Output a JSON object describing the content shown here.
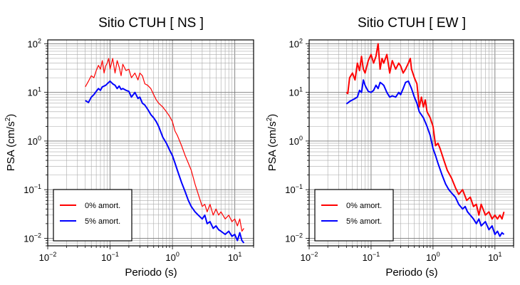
{
  "chart_data": [
    {
      "type": "line",
      "title": "Sitio CTUH [ NS ]",
      "xlabel": "Periodo (s)",
      "ylabel": "PSA (cm/s²)",
      "ylabel_parts": {
        "main": "PSA (cm/s",
        "sup": "2",
        "end": ")"
      },
      "x_scale": "log",
      "y_scale": "log",
      "xlim": [
        0.01,
        20
      ],
      "ylim": [
        0.007,
        120
      ],
      "grid": true,
      "legend_position": "bottom-left",
      "x_ticks": [
        {
          "base": "10",
          "exp": "−2",
          "value": 0.01
        },
        {
          "base": "10",
          "exp": "−1",
          "value": 0.1
        },
        {
          "base": "10",
          "exp": "0",
          "value": 1
        },
        {
          "base": "10",
          "exp": "1",
          "value": 10
        }
      ],
      "y_ticks": [
        {
          "base": "10",
          "exp": "−2",
          "value": 0.01
        },
        {
          "base": "10",
          "exp": "−1",
          "value": 0.1
        },
        {
          "base": "10",
          "exp": "0",
          "value": 1
        },
        {
          "base": "10",
          "exp": "1",
          "value": 10
        },
        {
          "base": "10",
          "exp": "2",
          "value": 100
        }
      ],
      "series": [
        {
          "name": "0% amort.",
          "color": "#ff0000",
          "width": 1.2,
          "x": [
            0.04,
            0.045,
            0.05,
            0.055,
            0.06,
            0.065,
            0.07,
            0.075,
            0.08,
            0.085,
            0.09,
            0.095,
            0.1,
            0.11,
            0.12,
            0.13,
            0.14,
            0.15,
            0.16,
            0.18,
            0.2,
            0.22,
            0.25,
            0.28,
            0.3,
            0.33,
            0.36,
            0.4,
            0.45,
            0.5,
            0.55,
            0.6,
            0.7,
            0.8,
            0.9,
            1.0,
            1.1,
            1.2,
            1.4,
            1.6,
            1.8,
            2.0,
            2.3,
            2.6,
            3.0,
            3.3,
            3.6,
            4.0,
            4.5,
            5.0,
            5.5,
            6.0,
            7.0,
            8.0,
            9.0,
            10,
            11,
            12,
            13,
            14
          ],
          "values": [
            13,
            17,
            22,
            20,
            28,
            36,
            30,
            45,
            25,
            35,
            40,
            50,
            30,
            50,
            25,
            45,
            33,
            22,
            38,
            28,
            30,
            20,
            25,
            18,
            25,
            22,
            15,
            14,
            12,
            9,
            7,
            6,
            5,
            4,
            3.2,
            2.5,
            1.6,
            1.3,
            0.8,
            0.5,
            0.35,
            0.25,
            0.13,
            0.08,
            0.045,
            0.05,
            0.035,
            0.05,
            0.03,
            0.04,
            0.03,
            0.035,
            0.025,
            0.03,
            0.022,
            0.025,
            0.018,
            0.025,
            0.014,
            0.016
          ]
        },
        {
          "name": "5% amort.",
          "color": "#0000ff",
          "width": 2,
          "x": [
            0.04,
            0.045,
            0.05,
            0.055,
            0.06,
            0.065,
            0.07,
            0.075,
            0.08,
            0.085,
            0.09,
            0.1,
            0.11,
            0.12,
            0.13,
            0.14,
            0.15,
            0.16,
            0.18,
            0.2,
            0.22,
            0.25,
            0.28,
            0.3,
            0.33,
            0.36,
            0.4,
            0.45,
            0.5,
            0.55,
            0.6,
            0.7,
            0.8,
            0.9,
            1.0,
            1.1,
            1.2,
            1.4,
            1.6,
            1.8,
            2.0,
            2.3,
            2.6,
            3.0,
            3.3,
            3.6,
            4.0,
            4.5,
            5.0,
            5.5,
            6.0,
            7.0,
            8.0,
            9.0,
            10,
            11,
            12,
            13,
            14
          ],
          "values": [
            6.8,
            6.2,
            8,
            9,
            10.5,
            12,
            11,
            13,
            13.5,
            14,
            15,
            17,
            15,
            14,
            12,
            13.5,
            11.5,
            12,
            11,
            10.5,
            8,
            10,
            7.5,
            8,
            6,
            5.5,
            4.5,
            3.5,
            3,
            2.5,
            2,
            1.2,
            0.9,
            0.65,
            0.5,
            0.35,
            0.25,
            0.14,
            0.09,
            0.06,
            0.045,
            0.035,
            0.03,
            0.025,
            0.03,
            0.02,
            0.022,
            0.016,
            0.018,
            0.015,
            0.014,
            0.012,
            0.014,
            0.011,
            0.012,
            0.009,
            0.013,
            0.009,
            0.008
          ]
        }
      ]
    },
    {
      "type": "line",
      "title": "Sitio CTUH [ EW ]",
      "xlabel": "Periodo (s)",
      "ylabel": "PSA (cm/s²)",
      "ylabel_parts": {
        "main": "PSA (cm/s",
        "sup": "2",
        "end": ")"
      },
      "x_scale": "log",
      "y_scale": "log",
      "xlim": [
        0.01,
        20
      ],
      "ylim": [
        0.007,
        120
      ],
      "grid": true,
      "legend_position": "bottom-left",
      "x_ticks": [
        {
          "base": "10",
          "exp": "−2",
          "value": 0.01
        },
        {
          "base": "10",
          "exp": "−1",
          "value": 0.1
        },
        {
          "base": "10",
          "exp": "0",
          "value": 1
        },
        {
          "base": "10",
          "exp": "1",
          "value": 10
        }
      ],
      "y_ticks": [
        {
          "base": "10",
          "exp": "−2",
          "value": 0.01
        },
        {
          "base": "10",
          "exp": "−1",
          "value": 0.1
        },
        {
          "base": "10",
          "exp": "0",
          "value": 1
        },
        {
          "base": "10",
          "exp": "1",
          "value": 10
        },
        {
          "base": "10",
          "exp": "2",
          "value": 100
        }
      ],
      "series": [
        {
          "name": "0% amort.",
          "color": "#ff0000",
          "width": 2,
          "x": [
            0.04,
            0.042,
            0.045,
            0.05,
            0.055,
            0.06,
            0.065,
            0.07,
            0.075,
            0.08,
            0.09,
            0.1,
            0.11,
            0.12,
            0.13,
            0.14,
            0.15,
            0.16,
            0.18,
            0.2,
            0.22,
            0.25,
            0.28,
            0.3,
            0.33,
            0.36,
            0.4,
            0.43,
            0.45,
            0.5,
            0.55,
            0.6,
            0.65,
            0.7,
            0.75,
            0.8,
            0.9,
            1.0,
            1.1,
            1.2,
            1.3,
            1.5,
            1.7,
            2.0,
            2.3,
            2.6,
            3.0,
            3.5,
            4.0,
            4.5,
            5.0,
            5.5,
            6.0,
            7.0,
            8.0,
            9.0,
            10,
            11,
            12,
            13,
            14
          ],
          "values": [
            10,
            9.5,
            20,
            25,
            18,
            40,
            28,
            55,
            30,
            25,
            45,
            60,
            40,
            55,
            100,
            30,
            50,
            40,
            60,
            25,
            45,
            30,
            40,
            35,
            25,
            30,
            40,
            50,
            30,
            20,
            15,
            5,
            8,
            5,
            7,
            4,
            3,
            2,
            0.8,
            0.9,
            0.7,
            0.4,
            0.25,
            0.17,
            0.11,
            0.08,
            0.1,
            0.06,
            0.07,
            0.045,
            0.05,
            0.03,
            0.05,
            0.03,
            0.035,
            0.025,
            0.03,
            0.025,
            0.03,
            0.025,
            0.035
          ]
        },
        {
          "name": "5% amort.",
          "color": "#0000ff",
          "width": 2,
          "x": [
            0.04,
            0.045,
            0.05,
            0.055,
            0.06,
            0.065,
            0.07,
            0.075,
            0.08,
            0.085,
            0.09,
            0.1,
            0.11,
            0.12,
            0.13,
            0.14,
            0.15,
            0.16,
            0.18,
            0.2,
            0.22,
            0.25,
            0.28,
            0.3,
            0.33,
            0.36,
            0.4,
            0.45,
            0.5,
            0.55,
            0.6,
            0.7,
            0.8,
            0.9,
            1.0,
            1.1,
            1.2,
            1.4,
            1.6,
            1.8,
            2.0,
            2.3,
            2.6,
            3.0,
            3.3,
            3.6,
            4.0,
            4.5,
            5.0,
            5.5,
            6.0,
            7.0,
            8.0,
            9.0,
            10,
            11,
            12,
            13,
            14
          ],
          "values": [
            5.8,
            6.5,
            7,
            7.5,
            8,
            11,
            10,
            18,
            14,
            12,
            10.5,
            10,
            11,
            14,
            12,
            16,
            15,
            14,
            10,
            8,
            8.5,
            8,
            10,
            9,
            12,
            16,
            17,
            12,
            8,
            6,
            4,
            3,
            2,
            1.3,
            0.7,
            0.5,
            0.35,
            0.2,
            0.13,
            0.1,
            0.085,
            0.07,
            0.05,
            0.04,
            0.045,
            0.035,
            0.03,
            0.025,
            0.02,
            0.025,
            0.018,
            0.022,
            0.015,
            0.018,
            0.012,
            0.014,
            0.011,
            0.013,
            0.012
          ]
        }
      ]
    }
  ]
}
